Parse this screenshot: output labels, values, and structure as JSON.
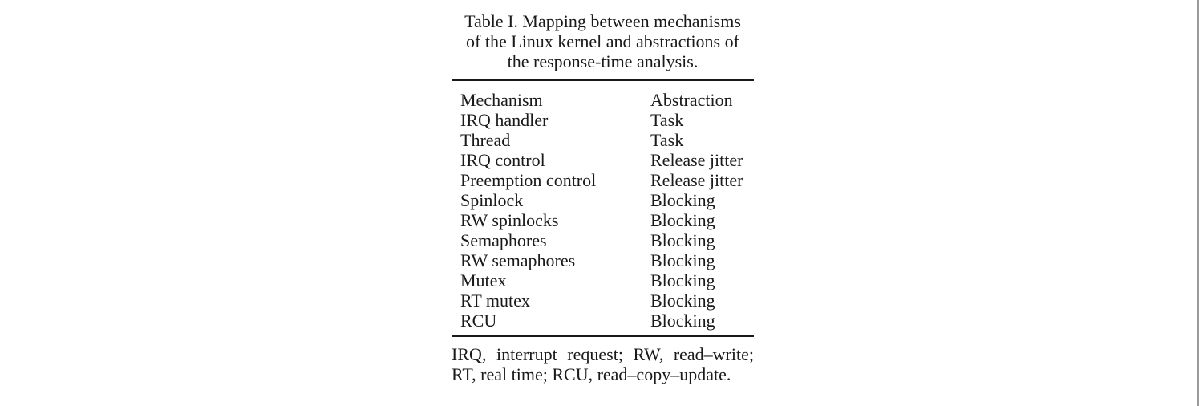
{
  "caption": {
    "line1": "Table I. Mapping between mechanisms",
    "line2": "of the Linux kernel and abstractions of",
    "line3": "the response-time analysis."
  },
  "table": {
    "headers": [
      "Mechanism",
      "Abstraction"
    ],
    "rows": [
      [
        "IRQ handler",
        "Task"
      ],
      [
        "Thread",
        "Task"
      ],
      [
        "IRQ control",
        "Release jitter"
      ],
      [
        "Preemption control",
        "Release jitter"
      ],
      [
        "Spinlock",
        "Blocking"
      ],
      [
        "RW spinlocks",
        "Blocking"
      ],
      [
        "Semaphores",
        "Blocking"
      ],
      [
        "RW semaphores",
        "Blocking"
      ],
      [
        "Mutex",
        "Blocking"
      ],
      [
        "RT mutex",
        "Blocking"
      ],
      [
        "RCU",
        "Blocking"
      ]
    ]
  },
  "footnote": {
    "line1": "IRQ, interrupt request; RW, read–write;",
    "line2": "RT, real time; RCU, read–copy–update."
  }
}
